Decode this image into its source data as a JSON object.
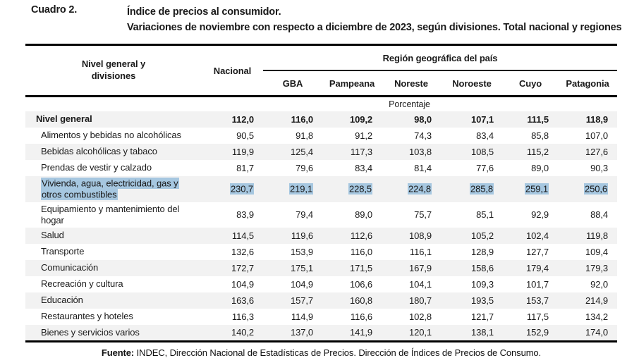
{
  "title": {
    "label": "Cuadro 2.",
    "line1": "Índice de precios al consumidor.",
    "line2": "Variaciones de noviembre con respecto a diciembre de 2023, según divisiones. Total nacional y regiones"
  },
  "table": {
    "col_label_header": "Nivel general y divisiones",
    "nacional_header": "Nacional",
    "region_group_header": "Región geográfica del país",
    "region_columns": [
      "GBA",
      "Pampeana",
      "Noreste",
      "Noroeste",
      "Cuyo",
      "Patagonia"
    ],
    "unit_row": "Porcentaje",
    "rows": [
      {
        "label": "Nivel general",
        "bold": true,
        "values": [
          "112,0",
          "116,0",
          "109,2",
          "98,0",
          "107,1",
          "111,5",
          "118,9"
        ]
      },
      {
        "label": "Alimentos y bebidas no alcohólicas",
        "values": [
          "90,5",
          "91,8",
          "91,2",
          "74,3",
          "83,4",
          "85,8",
          "107,0"
        ]
      },
      {
        "label": "Bebidas alcohólicas y tabaco",
        "values": [
          "119,9",
          "125,4",
          "117,3",
          "103,8",
          "108,5",
          "115,2",
          "127,6"
        ]
      },
      {
        "label": "Prendas de vestir y calzado",
        "values": [
          "81,7",
          "79,6",
          "83,4",
          "81,4",
          "77,6",
          "89,0",
          "90,3"
        ]
      },
      {
        "label": "Vivienda, agua, electricidad, gas y otros combustibles",
        "highlighted": true,
        "values": [
          "230,7",
          "219,1",
          "228,5",
          "224,8",
          "285,8",
          "259,1",
          "250,6"
        ]
      },
      {
        "label": "Equipamiento y mantenimiento del hogar",
        "values": [
          "83,9",
          "79,4",
          "89,0",
          "75,7",
          "85,1",
          "92,9",
          "88,4"
        ]
      },
      {
        "label": "Salud",
        "values": [
          "114,5",
          "119,6",
          "112,6",
          "108,9",
          "105,2",
          "102,4",
          "119,8"
        ]
      },
      {
        "label": "Transporte",
        "values": [
          "132,6",
          "153,9",
          "116,0",
          "116,1",
          "128,9",
          "127,7",
          "109,4"
        ]
      },
      {
        "label": "Comunicación",
        "values": [
          "172,7",
          "175,1",
          "171,5",
          "167,9",
          "158,6",
          "179,4",
          "179,3"
        ]
      },
      {
        "label": "Recreación y cultura",
        "values": [
          "104,9",
          "104,9",
          "106,6",
          "104,1",
          "109,3",
          "101,7",
          "92,0"
        ]
      },
      {
        "label": "Educación",
        "values": [
          "163,6",
          "157,7",
          "160,8",
          "180,7",
          "193,5",
          "153,7",
          "214,9"
        ]
      },
      {
        "label": "Restaurantes y hoteles",
        "values": [
          "116,3",
          "114,9",
          "116,6",
          "102,8",
          "121,7",
          "117,5",
          "134,2"
        ]
      },
      {
        "label": "Bienes y servicios varios",
        "values": [
          "140,2",
          "137,0",
          "141,9",
          "120,1",
          "138,1",
          "152,9",
          "174,0"
        ]
      }
    ]
  },
  "footer": {
    "source_label": "Fuente:",
    "source_text": " INDEC, Dirección Nacional de Estadísticas de Precios. Dirección de Índices de Precios de Consumo."
  },
  "colors": {
    "stripe": "#f2f2f2",
    "selection_highlight": "#a6c7e0",
    "border": "#000000"
  }
}
